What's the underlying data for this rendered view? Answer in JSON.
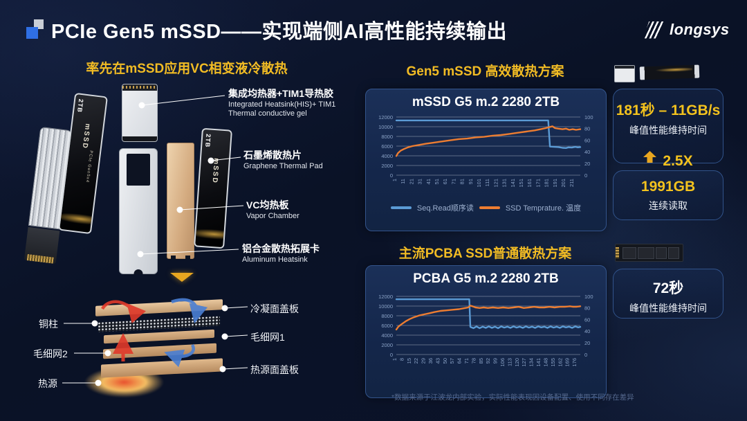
{
  "header": {
    "title": "PCIe Gen5 mSSD——实现端侧AI高性能持续输出",
    "logo": "longsys"
  },
  "left": {
    "heading": "率先在mSSD应用VC相变液冷散热",
    "product": {
      "capacity": "2TB",
      "brand": "mSSD",
      "interface": "PCIe Gen5x4"
    },
    "callouts": [
      {
        "zh": "集成均热器+TIM1导热胶",
        "en1": "Integrated Heatsink(HIS)+ TIM1",
        "en2": "Thermal conductive gel"
      },
      {
        "zh": "石墨烯散热片",
        "en1": "Graphene Thermal Pad",
        "en2": ""
      },
      {
        "zh": "VC均热板",
        "en1": "Vapor Chamber",
        "en2": ""
      },
      {
        "zh": "铝合金散热拓展卡",
        "en1": "Aluminum Heatsink",
        "en2": ""
      }
    ],
    "vc_labels": {
      "copper_pillar": "铜柱",
      "mesh2": "毛细网2",
      "heat_source": "热源",
      "condenser_plate": "冷凝面盖板",
      "mesh1": "毛细网1",
      "heat_plate": "热源面盖板"
    }
  },
  "middle": {
    "section1_heading": "Gen5 mSSD 高效散热方案",
    "section2_heading": "主流PCBA SSD普通散热方案"
  },
  "right": {
    "cards": [
      {
        "headline": "181秒 – 11GB/s",
        "sub": "峰值性能维持时间",
        "boost": "2.5X"
      },
      {
        "headline": "1991GB",
        "sub": "连续读取"
      },
      {
        "headline": "72秒",
        "sub": "峰值性能维持时间"
      }
    ]
  },
  "footnote": "*数据来源于江波龙内部实验，实际性能表现因设备配置、使用不同存在差异",
  "colors": {
    "accent_yellow": "#f2bc24",
    "seq_read_blue": "#5b9bd5",
    "temperature_orange": "#ed7d31",
    "panel_border": "#33548c"
  },
  "chart_data": [
    {
      "type": "line",
      "title": "mSSD G5 m.2 2280 2TB",
      "xlabel": "",
      "ylabel": "",
      "grid": true,
      "legend_position": "bottom",
      "x_range": [
        1,
        219
      ],
      "x_ticks": [
        1,
        11,
        21,
        31,
        41,
        51,
        61,
        71,
        81,
        91,
        101,
        111,
        121,
        131,
        141,
        151,
        161,
        171,
        181,
        191,
        201,
        211
      ],
      "left_axis": {
        "range": [
          0,
          12000
        ],
        "ticks": [
          0,
          2000,
          4000,
          6000,
          8000,
          10000,
          12000
        ]
      },
      "right_axis": {
        "range": [
          0,
          100
        ],
        "ticks": [
          0,
          20,
          40,
          60,
          80,
          100
        ]
      },
      "series": [
        {
          "name": "Seq.Read顺序读",
          "axis": "left",
          "color": "#5b9bd5",
          "points": [
            [
              1,
              11300
            ],
            [
              181,
              11300
            ],
            [
              183,
              5900
            ],
            [
              188,
              5850
            ],
            [
              193,
              5800
            ],
            [
              198,
              5650
            ],
            [
              202,
              5600
            ],
            [
              205,
              5750
            ],
            [
              209,
              5700
            ],
            [
              213,
              5850
            ],
            [
              216,
              5750
            ],
            [
              219,
              5800
            ]
          ]
        },
        {
          "name": "SSD Temprature. 温度",
          "axis": "right",
          "color": "#ed7d31",
          "points": [
            [
              1,
              33
            ],
            [
              3,
              38
            ],
            [
              6,
              42
            ],
            [
              10,
              45
            ],
            [
              15,
              48
            ],
            [
              20,
              50
            ],
            [
              28,
              52
            ],
            [
              36,
              54
            ],
            [
              45,
              56
            ],
            [
              55,
              58
            ],
            [
              65,
              60
            ],
            [
              75,
              62
            ],
            [
              85,
              63
            ],
            [
              95,
              65
            ],
            [
              105,
              66
            ],
            [
              115,
              68
            ],
            [
              125,
              69
            ],
            [
              135,
              71
            ],
            [
              145,
              73
            ],
            [
              155,
              75
            ],
            [
              165,
              77
            ],
            [
              172,
              79
            ],
            [
              178,
              81
            ],
            [
              183,
              83
            ],
            [
              186,
              84
            ],
            [
              189,
              81
            ],
            [
              193,
              80
            ],
            [
              198,
              79
            ],
            [
              202,
              80
            ],
            [
              206,
              78
            ],
            [
              210,
              79
            ],
            [
              214,
              78
            ],
            [
              219,
              79
            ]
          ]
        }
      ]
    },
    {
      "type": "line",
      "title": "PCBA G5 m.2 2280 2TB",
      "xlabel": "",
      "ylabel": "",
      "grid": true,
      "legend_position": "none",
      "x_range": [
        1,
        180
      ],
      "x_ticks": [
        1,
        8,
        15,
        22,
        29,
        36,
        43,
        50,
        57,
        64,
        71,
        78,
        85,
        92,
        99,
        106,
        113,
        120,
        127,
        134,
        141,
        148,
        155,
        162,
        169,
        176
      ],
      "left_axis": {
        "range": [
          0,
          12000
        ],
        "ticks": [
          0,
          2000,
          4000,
          6000,
          8000,
          10000,
          12000
        ]
      },
      "right_axis": {
        "range": [
          0,
          100
        ],
        "ticks": [
          0,
          20,
          40,
          60,
          80,
          100
        ]
      },
      "series": [
        {
          "name": "Seq.Read顺序读",
          "axis": "left",
          "color": "#5b9bd5",
          "points": [
            [
              1,
              11400
            ],
            [
              71,
              11400
            ],
            [
              72,
              11400
            ],
            [
              73,
              5700
            ],
            [
              76,
              5450
            ],
            [
              79,
              5800
            ],
            [
              82,
              5450
            ],
            [
              85,
              5750
            ],
            [
              88,
              5500
            ],
            [
              91,
              5800
            ],
            [
              94,
              5500
            ],
            [
              97,
              5750
            ],
            [
              100,
              5450
            ],
            [
              103,
              5800
            ],
            [
              106,
              5550
            ],
            [
              109,
              5750
            ],
            [
              112,
              5500
            ],
            [
              115,
              5800
            ],
            [
              118,
              5550
            ],
            [
              121,
              5750
            ],
            [
              124,
              5500
            ],
            [
              127,
              5800
            ],
            [
              130,
              5550
            ],
            [
              133,
              5750
            ],
            [
              136,
              5500
            ],
            [
              139,
              5800
            ],
            [
              142,
              5600
            ],
            [
              145,
              5750
            ],
            [
              148,
              5500
            ],
            [
              151,
              5800
            ],
            [
              154,
              5550
            ],
            [
              157,
              5750
            ],
            [
              160,
              5500
            ],
            [
              163,
              5800
            ],
            [
              166,
              5600
            ],
            [
              169,
              5750
            ],
            [
              172,
              5500
            ],
            [
              175,
              5800
            ],
            [
              178,
              5600
            ],
            [
              180,
              5700
            ]
          ]
        },
        {
          "name": "SSD Temprature. 温度",
          "axis": "right",
          "color": "#ed7d31",
          "points": [
            [
              1,
              43
            ],
            [
              3,
              48
            ],
            [
              6,
              52
            ],
            [
              10,
              57
            ],
            [
              14,
              61
            ],
            [
              18,
              64
            ],
            [
              23,
              67
            ],
            [
              28,
              69
            ],
            [
              33,
              71
            ],
            [
              38,
              73
            ],
            [
              44,
              75
            ],
            [
              50,
              76
            ],
            [
              56,
              77
            ],
            [
              62,
              78
            ],
            [
              68,
              80
            ],
            [
              71,
              81
            ],
            [
              73,
              84
            ],
            [
              75,
              83
            ],
            [
              78,
              81
            ],
            [
              82,
              80
            ],
            [
              86,
              81
            ],
            [
              90,
              80
            ],
            [
              95,
              81
            ],
            [
              100,
              80
            ],
            [
              105,
              81
            ],
            [
              110,
              80
            ],
            [
              115,
              81
            ],
            [
              120,
              82
            ],
            [
              125,
              80
            ],
            [
              130,
              81
            ],
            [
              135,
              82
            ],
            [
              140,
              81
            ],
            [
              145,
              81
            ],
            [
              150,
              82
            ],
            [
              155,
              81
            ],
            [
              160,
              82
            ],
            [
              165,
              82
            ],
            [
              170,
              83
            ],
            [
              173,
              82
            ],
            [
              176,
              82
            ],
            [
              180,
              83
            ]
          ]
        }
      ]
    }
  ]
}
